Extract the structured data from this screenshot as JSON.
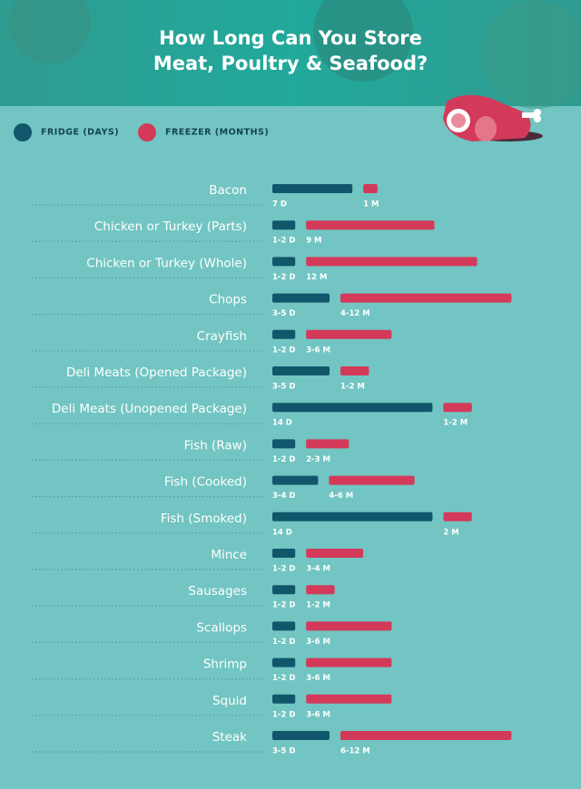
{
  "chart_data": {
    "type": "bar",
    "orientation": "horizontal",
    "title": "How Long Can You Store Meat, Poultry & Seafood?",
    "categories": [
      "Bacon",
      "Chicken or Turkey (Parts)",
      "Chicken or Turkey (Whole)",
      "Chops",
      "Crayfish",
      "Deli Meats (Opened Package)",
      "Deli Meats (Unopened Package)",
      "Fish (Raw)",
      "Fish (Cooked)",
      "Fish (Smoked)",
      "Mince",
      "Sausages",
      "Scallops",
      "Shrimp",
      "Squid",
      "Steak"
    ],
    "series": [
      {
        "name": "FRIDGE (DAYS)",
        "color": "#11576b",
        "values": [
          7,
          2,
          2,
          5,
          2,
          5,
          14,
          2,
          4,
          14,
          2,
          2,
          2,
          2,
          2,
          5
        ],
        "value_labels": [
          "7 D",
          "1-2 D",
          "1-2 D",
          "3-5 D",
          "1-2 D",
          "3-5 D",
          "14 D",
          "1-2 D",
          "3-4 D",
          "14 D",
          "1-2 D",
          "1-2 D",
          "1-2 D",
          "1-2 D",
          "1-2 D",
          "3-5 D"
        ]
      },
      {
        "name": "FREEZER (MONTHS)",
        "color": "#d33a5a",
        "values": [
          1,
          9,
          12,
          12,
          6,
          2,
          2,
          3,
          6,
          2,
          4,
          2,
          6,
          6,
          6,
          12
        ],
        "value_labels": [
          "1 M",
          "9 M",
          "12 M",
          "4-12 M",
          "3-6 M",
          "1-2 M",
          "1-2 M",
          "2-3 M",
          "4-6 M",
          "2 M",
          "3-4 M",
          "1-2 M",
          "3-6 M",
          "3-6 M",
          "3-6 M",
          "6-12 M"
        ]
      }
    ]
  }
}
